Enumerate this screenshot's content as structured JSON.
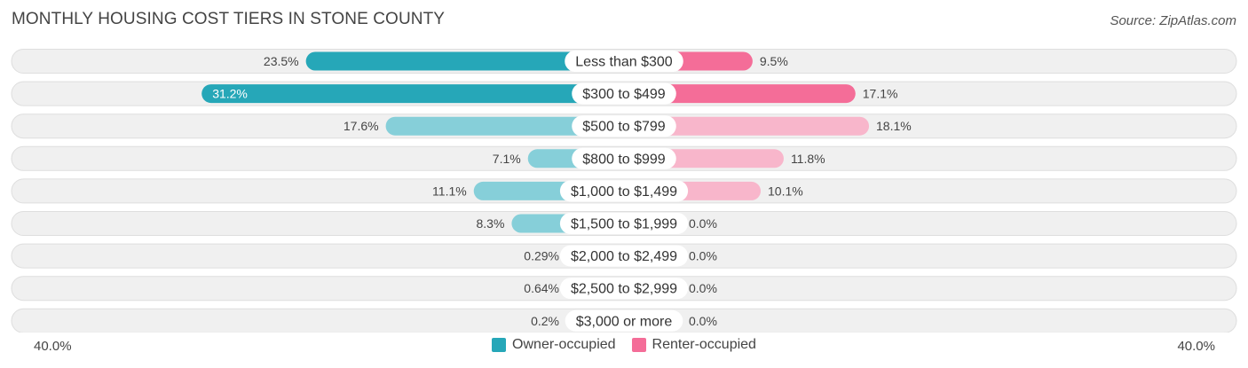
{
  "title": "MONTHLY HOUSING COST TIERS IN STONE COUNTY",
  "source": "Source: ZipAtlas.com",
  "colors": {
    "owner_strong": "#26a7b8",
    "owner_light": "#86cfd9",
    "renter_strong": "#f46d98",
    "renter_light": "#f8b6cb",
    "row_bg": "#f0f0f0",
    "row_border": "#dedede"
  },
  "legend": {
    "owner_label": "Owner-occupied",
    "renter_label": "Renter-occupied"
  },
  "axis": {
    "left_label": "40.0%",
    "right_label": "40.0%"
  },
  "chart_data": {
    "type": "bar",
    "orientation": "horizontal-diverging",
    "categories": [
      "Less than $300",
      "$300 to $499",
      "$500 to $799",
      "$800 to $999",
      "$1,000 to $1,499",
      "$1,500 to $1,999",
      "$2,000 to $2,499",
      "$2,500 to $2,999",
      "$3,000 or more"
    ],
    "series": [
      {
        "name": "Owner-occupied",
        "values": [
          23.5,
          31.2,
          17.6,
          7.1,
          11.1,
          8.3,
          0.29,
          0.64,
          0.2
        ],
        "labels": [
          "23.5%",
          "31.2%",
          "17.6%",
          "7.1%",
          "11.1%",
          "8.3%",
          "0.29%",
          "0.64%",
          "0.2%"
        ]
      },
      {
        "name": "Renter-occupied",
        "values": [
          9.5,
          17.1,
          18.1,
          11.8,
          10.1,
          0.0,
          0.0,
          0.0,
          0.0
        ],
        "labels": [
          "9.5%",
          "17.1%",
          "18.1%",
          "11.8%",
          "10.1%",
          "0.0%",
          "0.0%",
          "0.0%",
          "0.0%"
        ]
      }
    ],
    "xlim": [
      -40,
      40
    ],
    "legend_position": "bottom-center"
  }
}
